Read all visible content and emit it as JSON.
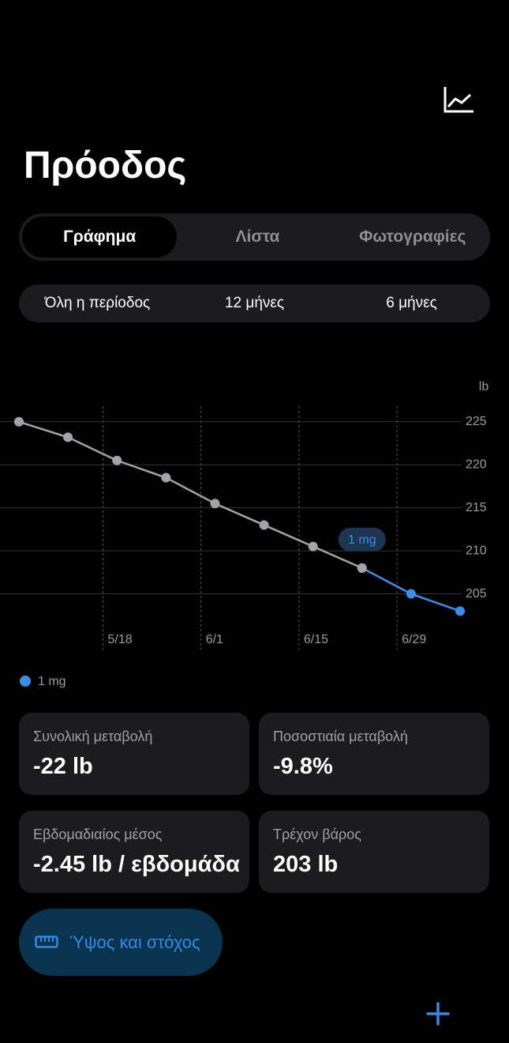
{
  "header": {
    "title": "Πρόοδος"
  },
  "tabs": [
    "Γράφημα",
    "Λίστα",
    "Φωτογραφίες"
  ],
  "ranges": [
    "Όλη η περίοδος",
    "12 μήνες",
    "6 μήνες"
  ],
  "chart_data": {
    "type": "line",
    "y_unit": "lb",
    "x": [
      "5/6",
      "5/13",
      "5/20",
      "5/27",
      "6/3",
      "6/10",
      "6/17",
      "6/24",
      "7/1",
      "7/8"
    ],
    "xlim": [
      "5/6",
      "7/8"
    ],
    "xticks": [
      "5/18",
      "6/1",
      "6/15",
      "6/29"
    ],
    "ylim": [
      200,
      227
    ],
    "yticks": [
      225,
      220,
      215,
      210,
      205
    ],
    "grid": true,
    "series": [
      {
        "color": "#a3a3a8",
        "values": [
          225,
          223.2,
          220.5,
          218.5,
          215.5,
          213,
          210.5,
          208,
          null,
          null
        ]
      },
      {
        "name": "1 mg",
        "color": "#3a8ee6",
        "values": [
          null,
          null,
          null,
          null,
          null,
          null,
          null,
          208,
          205,
          203
        ]
      }
    ],
    "annotations": [
      {
        "text": "1 mg"
      }
    ]
  },
  "cards": [
    {
      "label": "Συνολική μεταβολή",
      "value": "-22 lb"
    },
    {
      "label": "Ποσοστιαία μεταβολή",
      "value": "-9.8%"
    },
    {
      "label": "Εβδομαδιαίος μέσος",
      "value": "-2.45 lb / εβδομάδα"
    },
    {
      "label": "Τρέχον βάρος",
      "value": "203 lb"
    }
  ],
  "button": {
    "label": "Ύψος και στόχος"
  }
}
